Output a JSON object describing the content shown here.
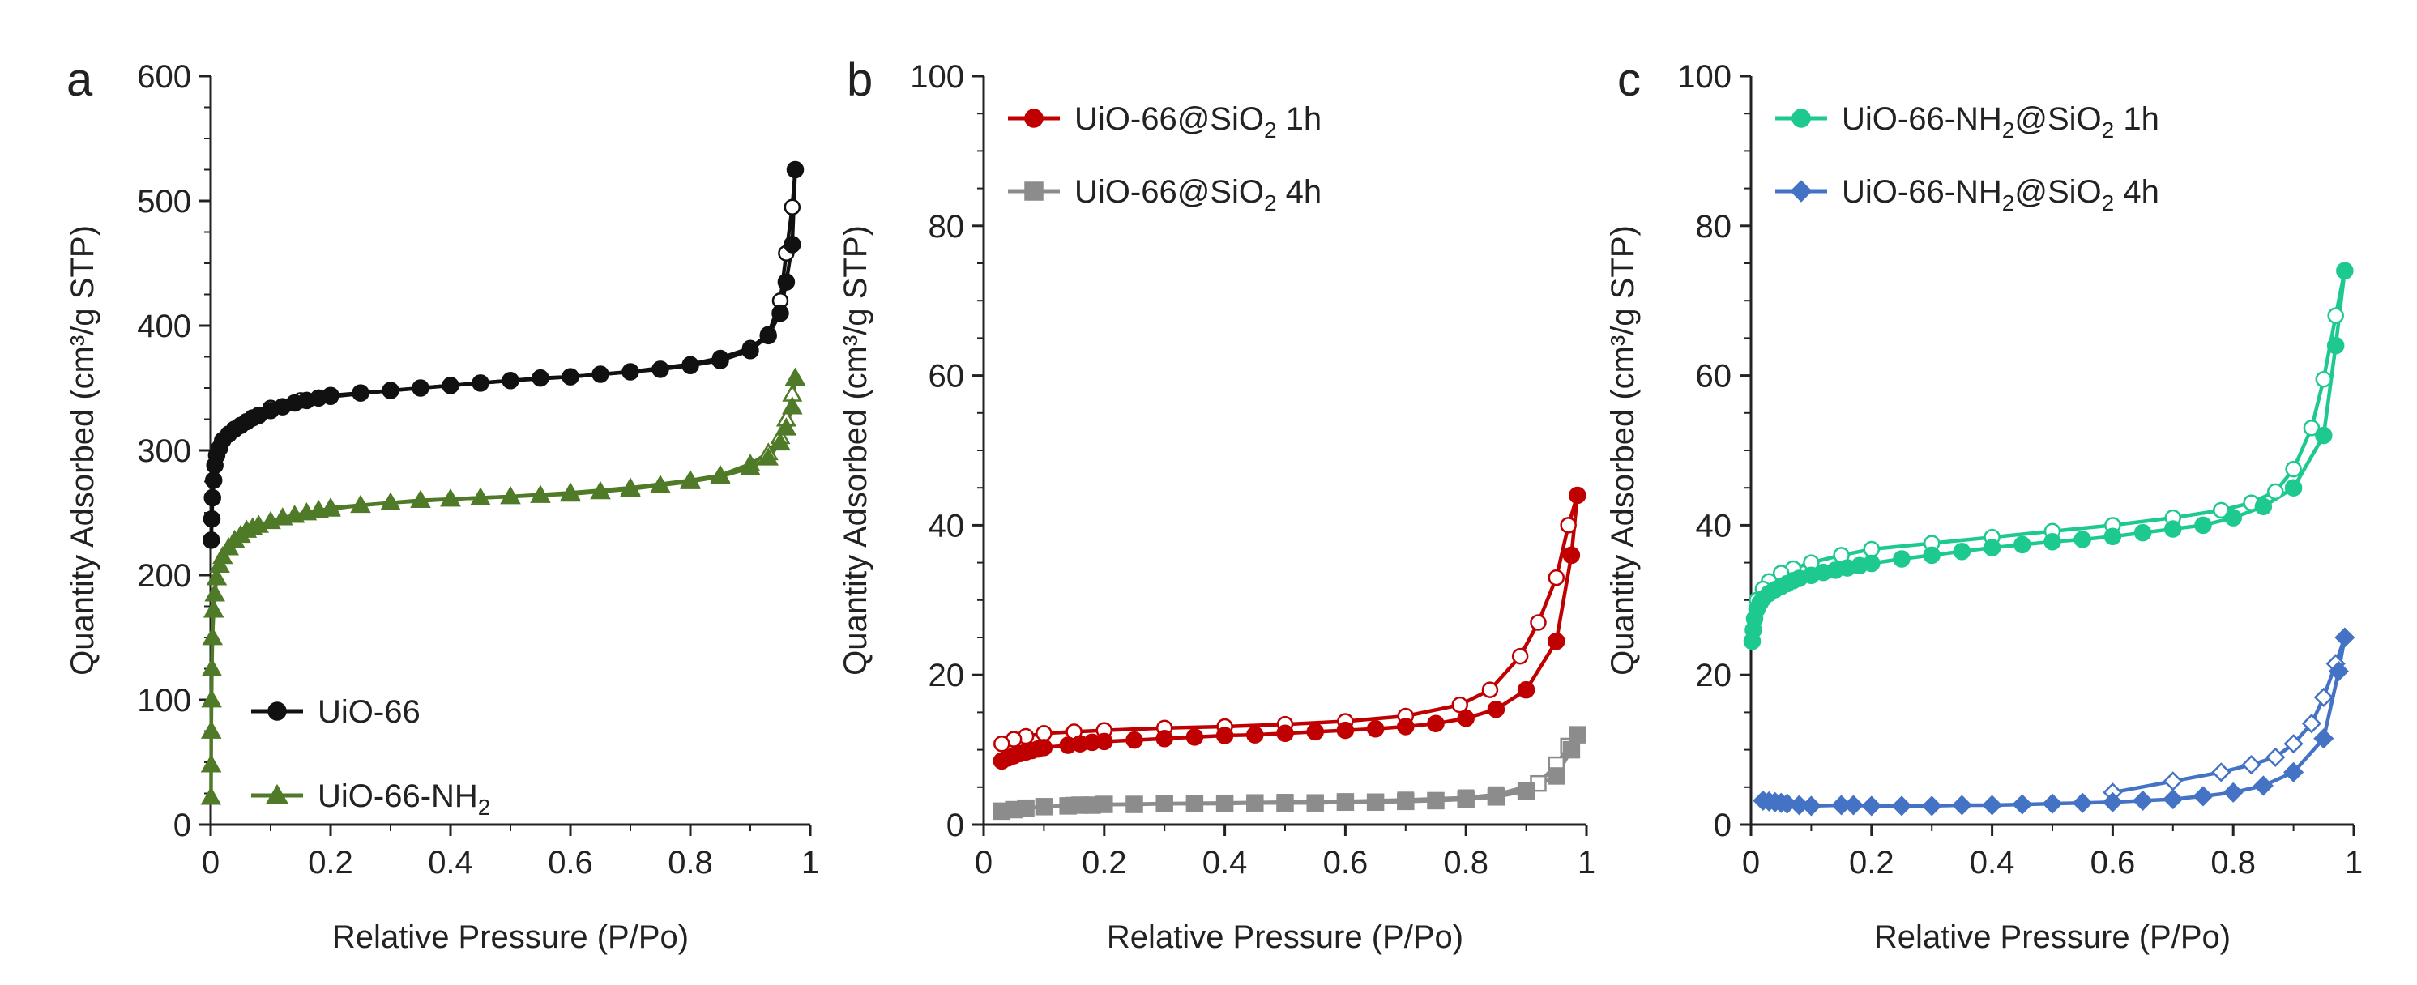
{
  "figure": {
    "panels": [
      "a",
      "b",
      "c"
    ]
  },
  "chart_data": [
    {
      "type": "line",
      "panel_label": "a",
      "title": "",
      "xlabel": "Relative Pressure (P/Po)",
      "ylabel": "Quantity Adsorbed (cm³/g STP)",
      "xlim": [
        0,
        1
      ],
      "ylim": [
        0,
        600
      ],
      "xticks": [
        0,
        0.2,
        0.4,
        0.6,
        0.8,
        1
      ],
      "xtick_labels": [
        "0",
        "0.2",
        "0.4",
        "0.6",
        "0.8",
        "1"
      ],
      "yticks": [
        0,
        100,
        200,
        300,
        400,
        500,
        600
      ],
      "ytick_labels": [
        "0",
        "100",
        "200",
        "300",
        "400",
        "500",
        "600"
      ],
      "legend_position": "bottom-left",
      "series": [
        {
          "name": "UiO-66",
          "label_main": "UiO-66",
          "label_sub": "",
          "label_tail": "",
          "color": "#111111",
          "marker": "circle",
          "adsorption": {
            "x": [
              0.001,
              0.002,
              0.003,
              0.005,
              0.007,
              0.01,
              0.015,
              0.02,
              0.03,
              0.04,
              0.05,
              0.06,
              0.07,
              0.08,
              0.1,
              0.12,
              0.14,
              0.16,
              0.18,
              0.2,
              0.25,
              0.3,
              0.35,
              0.4,
              0.45,
              0.5,
              0.55,
              0.6,
              0.65,
              0.7,
              0.75,
              0.8,
              0.85,
              0.9,
              0.93,
              0.95,
              0.96,
              0.97,
              0.975
            ],
            "y": [
              228,
              245,
              262,
              276,
              288,
              296,
              302,
              308,
              313,
              317,
              320,
              323,
              326,
              328,
              332,
              335,
              338,
              340,
              342,
              344,
              346,
              348,
              350,
              352,
              354,
              356,
              358,
              359,
              361,
              363,
              365,
              368,
              372,
              380,
              392,
              410,
              435,
              465,
              525
            ]
          },
          "desorption": {
            "x": [
              0.975,
              0.97,
              0.96,
              0.95,
              0.93,
              0.9,
              0.85,
              0.8,
              0.7,
              0.6,
              0.5,
              0.4,
              0.3,
              0.2,
              0.15,
              0.1
            ],
            "y": [
              525,
              495,
              458,
              420,
              393,
              382,
              374,
              369,
              363,
              359,
              356,
              352,
              348,
              343,
              340,
              334
            ]
          }
        },
        {
          "name": "UiO-66-NH2",
          "label_main": "UiO-66-NH",
          "label_sub": "2",
          "label_tail": "",
          "color": "#4f7a28",
          "marker": "triangle",
          "adsorption": {
            "x": [
              0.0005,
              0.0008,
              0.001,
              0.0015,
              0.002,
              0.003,
              0.005,
              0.007,
              0.01,
              0.015,
              0.02,
              0.03,
              0.04,
              0.05,
              0.06,
              0.07,
              0.08,
              0.1,
              0.12,
              0.14,
              0.16,
              0.18,
              0.2,
              0.25,
              0.3,
              0.35,
              0.4,
              0.45,
              0.5,
              0.55,
              0.6,
              0.65,
              0.7,
              0.75,
              0.8,
              0.85,
              0.9,
              0.93,
              0.95,
              0.96,
              0.97,
              0.975
            ],
            "y": [
              22,
              48,
              75,
              100,
              125,
              150,
              172,
              185,
              198,
              208,
              215,
              222,
              228,
              232,
              236,
              238,
              240,
              243,
              246,
              248,
              250,
              252,
              253,
              256,
              258,
              260,
              261,
              262,
              263,
              264,
              265,
              267,
              269,
              272,
              275,
              279,
              286,
              294,
              306,
              318,
              335,
              358
            ]
          },
          "desorption": {
            "x": [
              0.975,
              0.97,
              0.96,
              0.95,
              0.93,
              0.9,
              0.85,
              0.8,
              0.7,
              0.6,
              0.5,
              0.4,
              0.3,
              0.2
            ],
            "y": [
              358,
              345,
              325,
              311,
              298,
              289,
              280,
              276,
              270,
              266,
              263,
              261,
              258,
              254
            ]
          }
        }
      ]
    },
    {
      "type": "line",
      "panel_label": "b",
      "title": "",
      "xlabel": "Relative Pressure (P/Po)",
      "ylabel": "Quantity Adsorbed (cm³/g STP)",
      "xlim": [
        0,
        1
      ],
      "ylim": [
        0,
        100
      ],
      "xticks": [
        0,
        0.2,
        0.4,
        0.6,
        0.8,
        1
      ],
      "xtick_labels": [
        "0",
        "0.2",
        "0.4",
        "0.6",
        "0.8",
        "1"
      ],
      "yticks": [
        0,
        20,
        40,
        60,
        80,
        100
      ],
      "ytick_labels": [
        "0",
        "20",
        "40",
        "60",
        "80",
        "100"
      ],
      "legend_position": "top-left",
      "series": [
        {
          "name": "UiO-66@SiO2 1h",
          "label_main": "UiO-66@SiO",
          "label_sub": "2",
          "label_tail": " 1h",
          "color": "#c00000",
          "marker": "circle",
          "adsorption": {
            "x": [
              0.03,
              0.04,
              0.05,
              0.06,
              0.07,
              0.08,
              0.09,
              0.1,
              0.14,
              0.16,
              0.18,
              0.2,
              0.25,
              0.3,
              0.35,
              0.4,
              0.45,
              0.5,
              0.55,
              0.6,
              0.65,
              0.7,
              0.75,
              0.8,
              0.85,
              0.9,
              0.95,
              0.975,
              0.985
            ],
            "y": [
              8.5,
              8.9,
              9.2,
              9.5,
              9.7,
              9.9,
              10.1,
              10.3,
              10.6,
              10.8,
              11.0,
              11.1,
              11.3,
              11.5,
              11.7,
              11.9,
              12.0,
              12.2,
              12.4,
              12.6,
              12.8,
              13.1,
              13.5,
              14.2,
              15.4,
              18.0,
              24.5,
              36.0,
              44.0
            ]
          },
          "desorption": {
            "x": [
              0.985,
              0.97,
              0.95,
              0.92,
              0.89,
              0.84,
              0.79,
              0.7,
              0.6,
              0.5,
              0.4,
              0.3,
              0.2,
              0.15,
              0.1,
              0.07,
              0.05,
              0.03
            ],
            "y": [
              44.0,
              40.0,
              33.0,
              27.0,
              22.5,
              18.0,
              16.0,
              14.5,
              13.8,
              13.4,
              13.1,
              12.9,
              12.6,
              12.4,
              12.2,
              11.8,
              11.4,
              10.8
            ]
          }
        },
        {
          "name": "UiO-66@SiO2 4h",
          "label_main": "UiO-66@SiO",
          "label_sub": "2",
          "label_tail": " 4h",
          "color": "#8c8c8c",
          "marker": "square",
          "adsorption": {
            "x": [
              0.03,
              0.05,
              0.07,
              0.1,
              0.14,
              0.16,
              0.18,
              0.2,
              0.25,
              0.3,
              0.35,
              0.4,
              0.45,
              0.5,
              0.55,
              0.6,
              0.65,
              0.7,
              0.75,
              0.8,
              0.85,
              0.9,
              0.95,
              0.975,
              0.985
            ],
            "y": [
              1.8,
              2.0,
              2.2,
              2.4,
              2.5,
              2.6,
              2.6,
              2.7,
              2.7,
              2.8,
              2.8,
              2.8,
              2.9,
              2.9,
              2.9,
              3.0,
              3.0,
              3.1,
              3.2,
              3.4,
              3.7,
              4.5,
              6.5,
              10.0,
              12.0
            ]
          },
          "desorption": {
            "x": [
              0.985,
              0.97,
              0.95,
              0.92,
              0.85,
              0.8,
              0.7,
              0.6,
              0.5,
              0.4,
              0.3,
              0.2,
              0.15
            ],
            "y": [
              12.0,
              10.5,
              8.0,
              5.5,
              4.0,
              3.6,
              3.3,
              3.1,
              3.0,
              2.9,
              2.8,
              2.7,
              2.6
            ]
          }
        }
      ]
    },
    {
      "type": "line",
      "panel_label": "c",
      "title": "",
      "xlabel": "Relative Pressure (P/Po)",
      "ylabel": "Quantity Adsorbed (cm³/g STP)",
      "xlim": [
        0,
        1
      ],
      "ylim": [
        0,
        100
      ],
      "xticks": [
        0,
        0.2,
        0.4,
        0.6,
        0.8,
        1
      ],
      "xtick_labels": [
        "0",
        "0.2",
        "0.4",
        "0.6",
        "0.8",
        "1"
      ],
      "yticks": [
        0,
        20,
        40,
        60,
        80,
        100
      ],
      "ytick_labels": [
        "0",
        "20",
        "40",
        "60",
        "80",
        "100"
      ],
      "legend_position": "top-left",
      "series": [
        {
          "name": "UiO-66-NH2@SiO2 1h",
          "label_main": "UiO-66-NH",
          "label_sub": "2",
          "label_tail": "@SiO",
          "label_sub2": "2",
          "label_tail2": " 1h",
          "color": "#1dc98e",
          "marker": "circle",
          "adsorption": {
            "x": [
              0.002,
              0.004,
              0.006,
              0.01,
              0.015,
              0.02,
              0.03,
              0.04,
              0.05,
              0.06,
              0.07,
              0.08,
              0.1,
              0.12,
              0.14,
              0.16,
              0.18,
              0.2,
              0.25,
              0.3,
              0.35,
              0.4,
              0.45,
              0.5,
              0.55,
              0.6,
              0.65,
              0.7,
              0.75,
              0.8,
              0.85,
              0.9,
              0.95,
              0.97,
              0.985
            ],
            "y": [
              24.5,
              26.0,
              27.5,
              28.8,
              29.6,
              30.2,
              30.9,
              31.4,
              31.8,
              32.2,
              32.6,
              32.9,
              33.3,
              33.7,
              34.0,
              34.3,
              34.6,
              34.9,
              35.5,
              36.0,
              36.5,
              37.0,
              37.4,
              37.8,
              38.1,
              38.5,
              39.0,
              39.5,
              40.0,
              41.0,
              42.5,
              45.0,
              52.0,
              64.0,
              74.0
            ]
          },
          "desorption": {
            "x": [
              0.985,
              0.97,
              0.95,
              0.93,
              0.9,
              0.87,
              0.83,
              0.78,
              0.7,
              0.6,
              0.5,
              0.4,
              0.3,
              0.2,
              0.15,
              0.1,
              0.07,
              0.05,
              0.03,
              0.02,
              0.01
            ],
            "y": [
              74.0,
              68.0,
              59.5,
              53.0,
              47.5,
              44.5,
              43.0,
              42.0,
              41.0,
              40.0,
              39.2,
              38.4,
              37.6,
              36.8,
              36.0,
              35.0,
              34.2,
              33.6,
              32.5,
              31.5,
              30.0
            ]
          }
        },
        {
          "name": "UiO-66-NH2@SiO2 4h",
          "label_main": "UiO-66-NH",
          "label_sub": "2",
          "label_tail": "@SiO",
          "label_sub2": "2",
          "label_tail2": " 4h",
          "color": "#4472c4",
          "marker": "diamond",
          "adsorption": {
            "x": [
              0.02,
              0.03,
              0.04,
              0.05,
              0.06,
              0.08,
              0.1,
              0.15,
              0.17,
              0.2,
              0.25,
              0.3,
              0.35,
              0.4,
              0.45,
              0.5,
              0.55,
              0.6,
              0.65,
              0.7,
              0.75,
              0.8,
              0.85,
              0.9,
              0.95,
              0.975,
              0.985
            ],
            "y": [
              3.2,
              3.1,
              3.0,
              2.9,
              2.8,
              2.6,
              2.5,
              2.6,
              2.6,
              2.5,
              2.5,
              2.5,
              2.6,
              2.6,
              2.7,
              2.8,
              2.9,
              3.0,
              3.2,
              3.4,
              3.8,
              4.3,
              5.2,
              7.0,
              11.5,
              20.5,
              25.0
            ]
          },
          "desorption": {
            "x": [
              0.985,
              0.97,
              0.95,
              0.93,
              0.9,
              0.87,
              0.83,
              0.78,
              0.7,
              0.6
            ],
            "y": [
              25.0,
              21.5,
              17.0,
              13.5,
              10.8,
              9.0,
              8.0,
              7.0,
              5.8,
              4.3
            ]
          }
        }
      ]
    }
  ]
}
